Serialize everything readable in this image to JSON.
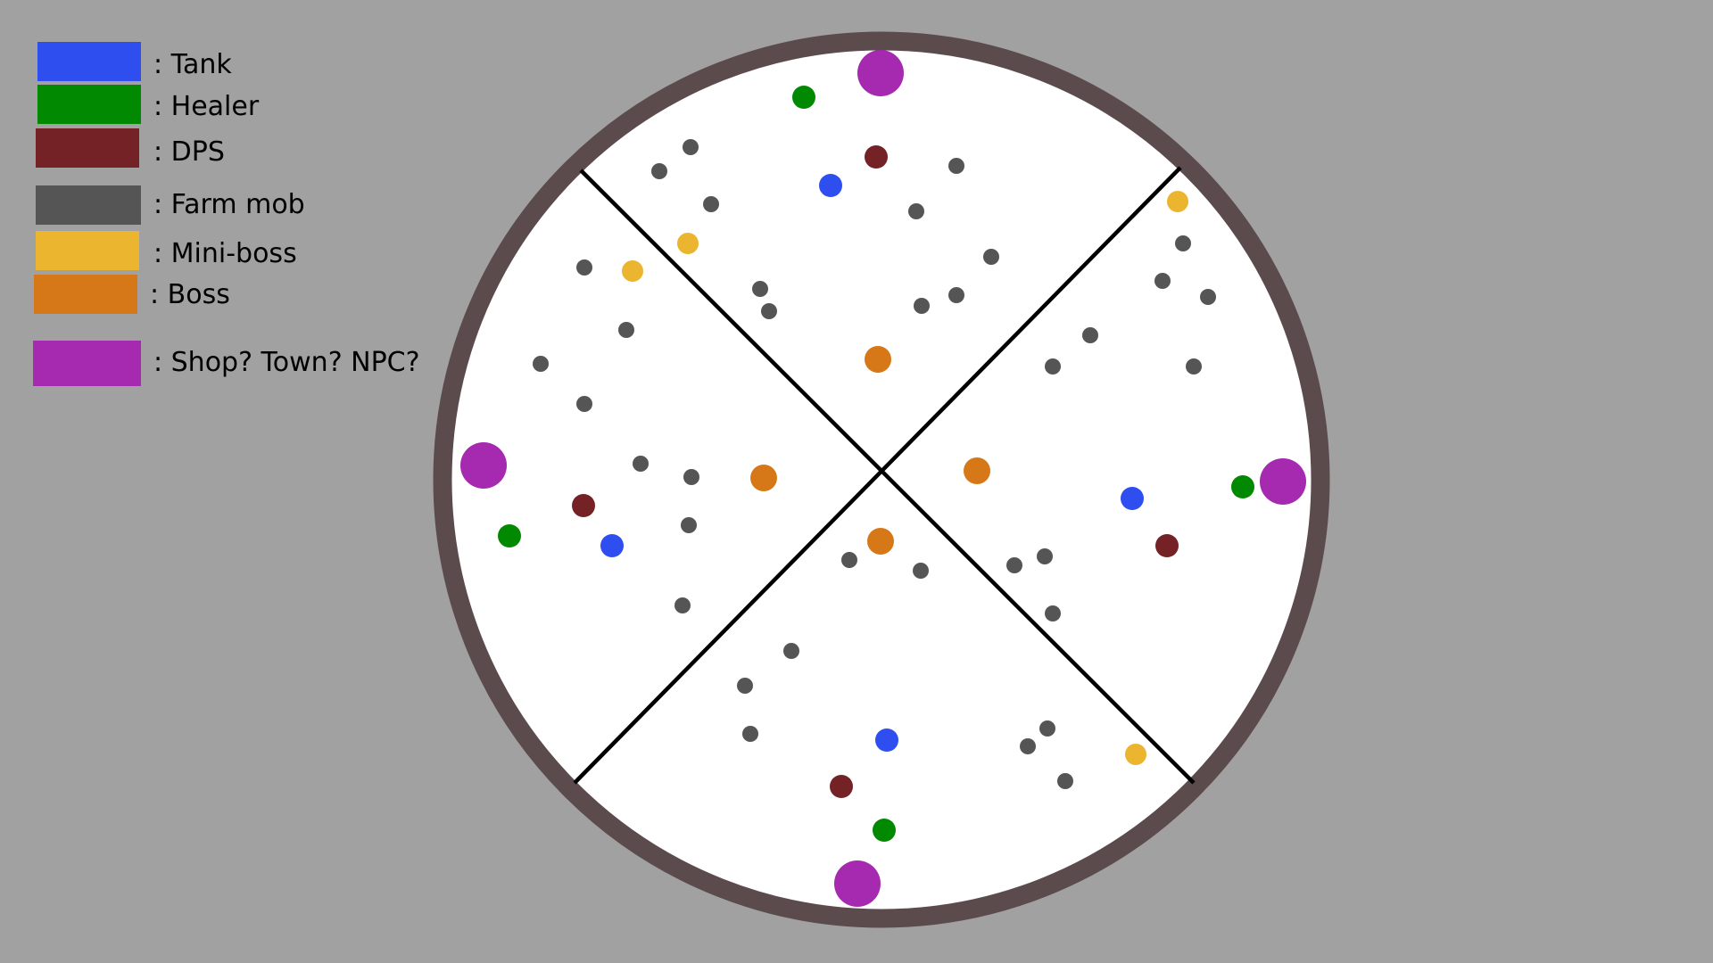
{
  "legend": {
    "items": [
      {
        "key": "tank",
        "label": ": Tank",
        "color": "#2e4ef0"
      },
      {
        "key": "healer",
        "label": ": Healer",
        "color": "#028902"
      },
      {
        "key": "dps",
        "label": ": DPS",
        "color": "#742225"
      },
      {
        "key": "farm",
        "label": ": Farm mob",
        "color": "#555555"
      },
      {
        "key": "miniboss",
        "label": ": Mini-boss",
        "color": "#ebb52f"
      },
      {
        "key": "boss",
        "label": ": Boss",
        "color": "#d77818"
      },
      {
        "key": "shop",
        "label": ": Shop? Town? NPC?",
        "color": "#a52aaf"
      }
    ]
  },
  "map": {
    "background_color": "#a1a1a1",
    "ring_color": "#5b4b4c",
    "field_color": "#ffffff",
    "divider_color": "#000000"
  }
}
